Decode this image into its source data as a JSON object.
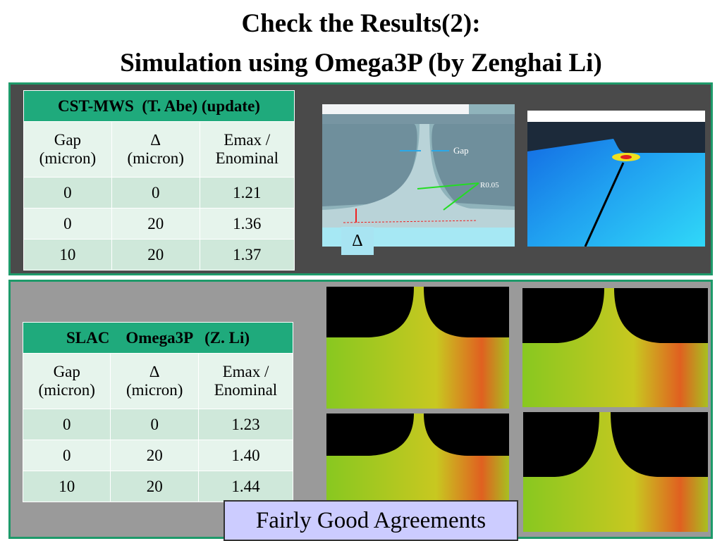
{
  "header": {
    "title_line1": "Check the Results(2):",
    "title_line2": "Simulation using Omega3P (by Zenghai Li)"
  },
  "tables": [
    {
      "caption": "CST-MWS  (T. Abe) (update)",
      "columns": [
        [
          "Gap",
          "(micron)"
        ],
        [
          "∆",
          "(micron)"
        ],
        [
          "Emax /",
          "Enominal"
        ]
      ],
      "rows": [
        [
          "0",
          "0",
          "1.21"
        ],
        [
          "0",
          "20",
          "1.36"
        ],
        [
          "10",
          "20",
          "1.37"
        ]
      ]
    },
    {
      "caption": "SLAC    Omega3P   (Z. Li)",
      "columns": [
        [
          "Gap",
          "(micron)"
        ],
        [
          "∆",
          "(micron)"
        ],
        [
          "Emax /",
          "Enominal"
        ]
      ],
      "rows": [
        [
          "0",
          "0",
          "1.23"
        ],
        [
          "0",
          "20",
          "1.40"
        ],
        [
          "10",
          "20",
          "1.44"
        ]
      ]
    }
  ],
  "figure": {
    "gap_label": "Gap",
    "radius_label": "R0.05",
    "delta_label": "∆"
  },
  "conclusion": "Fairly Good Agreements"
}
